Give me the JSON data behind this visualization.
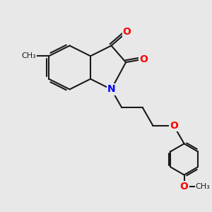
{
  "bg_color": "#e8e8e8",
  "bond_color": "#1a1a1a",
  "oxygen_color": "#ff0000",
  "nitrogen_color": "#0000ff",
  "bond_width": 1.5,
  "figsize": [
    3.0,
    3.0
  ],
  "dpi": 100,
  "xlim": [
    0,
    10
  ],
  "ylim": [
    0,
    10
  ]
}
